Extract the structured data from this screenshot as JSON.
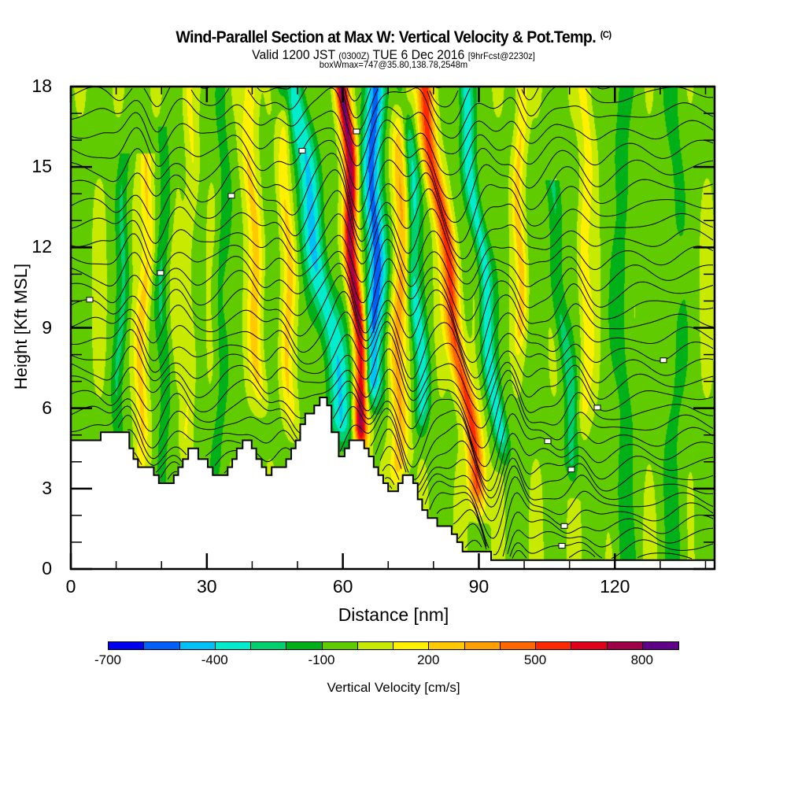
{
  "header": {
    "title": "Wind-Parallel Section at Max W: Vertical Velocity & Pot.Temp.",
    "copyright_mark": "(C)",
    "valid_prefix": "Valid 1200 JST",
    "valid_utc": "(0300Z)",
    "valid_date": "TUE 6 Dec 2016",
    "forecast_info": "[9hrFcst@2230z]",
    "box_info": "boxWmax=747@35.80,138.78,2548m"
  },
  "chart_data": {
    "type": "heatmap",
    "title": "Wind-Parallel Section at Max W: Vertical Velocity & Pot.Temp.",
    "xlabel": "Distance [nm]",
    "ylabel": "Height [Kft MSL]",
    "xlim": [
      0,
      142
    ],
    "ylim": [
      0,
      18
    ],
    "x_ticks": [
      0,
      30,
      60,
      90,
      120
    ],
    "x_tick_labels": [
      "0",
      "30",
      "60",
      "90",
      "120"
    ],
    "x_minor_step": 10,
    "y_ticks": [
      0,
      3,
      6,
      9,
      12,
      15,
      18
    ],
    "y_tick_labels": [
      "0",
      "3",
      "6",
      "9",
      "12",
      "15",
      "18"
    ],
    "y_minor_step": 1,
    "grid": false,
    "colorbar": {
      "title": "Vertical Velocity [cm/s]",
      "placement": "bottom",
      "boundaries": [
        -700,
        -600,
        -500,
        -400,
        -300,
        -200,
        -100,
        0,
        100,
        200,
        300,
        400,
        500,
        600,
        700,
        800,
        900
      ],
      "tick_values": [
        -700,
        -400,
        -100,
        200,
        500,
        800
      ],
      "tick_labels": [
        "-700",
        "-400",
        "-100",
        "200",
        "500",
        "800"
      ],
      "colors": [
        "#0000ee",
        "#0060f8",
        "#00c0f8",
        "#00eccc",
        "#00d070",
        "#00b018",
        "#60cc00",
        "#c8ea00",
        "#fff000",
        "#ffc800",
        "#ffa000",
        "#ff6800",
        "#ff2800",
        "#e0001c",
        "#a00048",
        "#600088"
      ]
    },
    "max_vertical_velocity_cm_s": 747,
    "velocity_features": [
      {
        "x0": 63.2,
        "tilt": -0.17,
        "w": 1.5,
        "amp": 820,
        "ztop": 18,
        "zbot": 5.2
      },
      {
        "x0": 66.8,
        "tilt": 0.0,
        "w": 2.2,
        "amp": -520,
        "ztop": 18,
        "zbot": 7
      },
      {
        "x0": 57.0,
        "tilt": -0.45,
        "w": 2.6,
        "amp": -380,
        "ztop": 18,
        "zbot": 5.5
      },
      {
        "x0": 72.5,
        "tilt": 0.05,
        "w": 1.8,
        "amp": 320,
        "ztop": 18,
        "zbot": 4
      },
      {
        "x0": 85.0,
        "tilt": -0.4,
        "w": 1.8,
        "amp": 560,
        "ztop": 18,
        "zbot": 3
      },
      {
        "x0": 92.0,
        "tilt": -0.3,
        "w": 1.6,
        "amp": -360,
        "ztop": 18,
        "zbot": 5
      },
      {
        "x0": 76.5,
        "tilt": -0.15,
        "w": 1.6,
        "amp": -320,
        "ztop": 18,
        "zbot": 6
      },
      {
        "x0": 99.0,
        "tilt": 0.0,
        "w": 1.2,
        "amp": 230,
        "ztop": 18,
        "zbot": 9
      },
      {
        "x0": 108.5,
        "tilt": -0.25,
        "w": 1.6,
        "amp": -220,
        "ztop": 14,
        "zbot": 4
      },
      {
        "x0": 41.0,
        "tilt": -0.1,
        "w": 1.6,
        "amp": 220,
        "ztop": 18,
        "zbot": 7
      },
      {
        "x0": 48.0,
        "tilt": -0.05,
        "w": 1.4,
        "amp": 200,
        "ztop": 18,
        "zbot": 6
      },
      {
        "x0": 16.0,
        "tilt": 0.1,
        "w": 1.4,
        "amp": 230,
        "ztop": 15,
        "zbot": 4
      },
      {
        "x0": 20.5,
        "tilt": 0.0,
        "w": 1.3,
        "amp": -150,
        "ztop": 16,
        "zbot": 3
      },
      {
        "x0": 11.0,
        "tilt": 0.08,
        "w": 1.3,
        "amp": -160,
        "ztop": 15,
        "zbot": 5
      },
      {
        "x0": 33.0,
        "tilt": 0.05,
        "w": 1.5,
        "amp": -120,
        "ztop": 18,
        "zbot": 4
      },
      {
        "x0": 26.0,
        "tilt": 0.03,
        "w": 1.2,
        "amp": 130,
        "ztop": 18,
        "zbot": 5
      },
      {
        "x0": 113.5,
        "tilt": 0.0,
        "w": 1.5,
        "amp": 160,
        "ztop": 18,
        "zbot": 6
      },
      {
        "x0": 122.0,
        "tilt": 0.0,
        "w": 2.5,
        "amp": -110,
        "ztop": 18,
        "zbot": 0
      },
      {
        "x0": 133.0,
        "tilt": 0.0,
        "w": 2.5,
        "amp": -100,
        "ztop": 18,
        "zbot": 0
      }
    ],
    "background_velocity_cm_s": -20,
    "theta_contours": {
      "count": 34,
      "label_note": "isentropes labeled in K (labels illegible at this resolution)"
    },
    "terrain": {
      "name": "Terrain height",
      "x": [
        0,
        6.6,
        6.6,
        12.9,
        12.9,
        13.8,
        13.8,
        14.8,
        14.8,
        18.3,
        18.3,
        19.4,
        19.4,
        22.7,
        22.7,
        23.7,
        23.7,
        24.7,
        24.7,
        25.9,
        25.9,
        28.1,
        28.1,
        30.2,
        30.2,
        31.3,
        31.3,
        34.6,
        34.6,
        35.6,
        35.6,
        36.6,
        36.6,
        37.9,
        37.9,
        39.9,
        39.9,
        40.9,
        40.9,
        42.1,
        42.1,
        43.1,
        43.1,
        44.3,
        44.3,
        47.5,
        47.5,
        48.6,
        48.6,
        49.6,
        49.6,
        50.6,
        50.6,
        51.7,
        51.7,
        53.7,
        53.7,
        54.9,
        54.9,
        56.5,
        56.5,
        57.5,
        57.5,
        59.1,
        59.1,
        60.4,
        60.4,
        61.4,
        61.4,
        64.7,
        64.7,
        65.7,
        65.7,
        66.8,
        66.8,
        67.8,
        67.8,
        68.9,
        68.9,
        70.0,
        70.0,
        72.2,
        72.2,
        73.2,
        73.2,
        75.5,
        75.5,
        76.5,
        76.5,
        77.5,
        77.5,
        78.7,
        78.7,
        80.8,
        80.8,
        84.0,
        84.0,
        85.2,
        85.2,
        86.4,
        86.4,
        92.7,
        92.7,
        142
      ],
      "y": [
        4.8,
        4.8,
        5.1,
        5.1,
        4.5,
        4.5,
        4.1,
        4.1,
        3.8,
        3.8,
        3.5,
        3.5,
        3.2,
        3.2,
        3.5,
        3.5,
        3.8,
        3.8,
        4.1,
        4.1,
        4.5,
        4.5,
        4.1,
        4.1,
        3.8,
        3.8,
        3.5,
        3.5,
        3.8,
        3.8,
        4.1,
        4.1,
        4.5,
        4.5,
        4.8,
        4.8,
        4.5,
        4.5,
        4.1,
        4.1,
        3.8,
        3.8,
        3.5,
        3.5,
        3.8,
        3.8,
        4.1,
        4.1,
        4.5,
        4.5,
        4.8,
        4.8,
        5.4,
        5.4,
        5.8,
        5.8,
        6.1,
        6.1,
        6.4,
        6.4,
        6.1,
        6.1,
        5.1,
        5.1,
        4.2,
        4.2,
        4.5,
        4.5,
        4.8,
        4.8,
        4.5,
        4.5,
        4.2,
        4.2,
        3.8,
        3.8,
        3.5,
        3.5,
        3.2,
        3.2,
        2.9,
        2.9,
        3.2,
        3.2,
        3.5,
        3.5,
        3.2,
        3.2,
        2.6,
        2.6,
        2.2,
        2.2,
        1.9,
        1.9,
        1.6,
        1.6,
        1.3,
        1.3,
        1.0,
        1.0,
        0.65,
        0.65,
        0.33,
        0.33
      ]
    }
  }
}
